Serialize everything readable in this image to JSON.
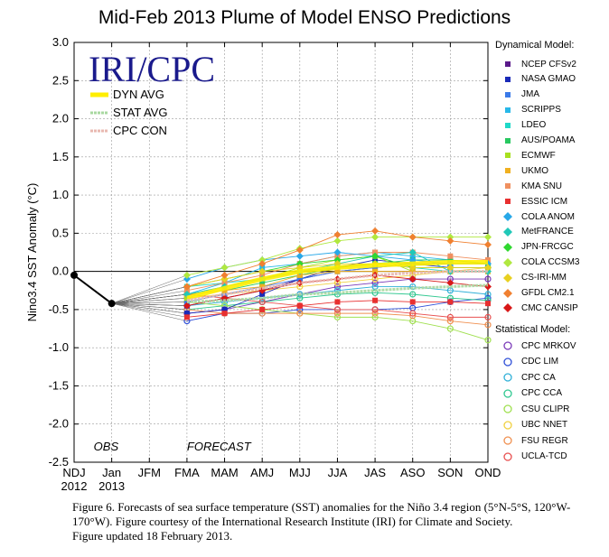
{
  "title": "Mid-Feb 2013 Plume of Model ENSO Predictions",
  "caption": {
    "line1": "Figure 6. Forecasts of sea surface temperature (SST) anomalies for the Niño 3.4 region (5°N-5°S, 120°W-",
    "line2": "170°W).  Figure courtesy of the International Research Institute (IRI) for Climate and Society.",
    "line3": "Figure updated 18 February 2013."
  },
  "chart_data": {
    "type": "line",
    "ylabel": "Nino3.4 SST Anomaly (°C)",
    "ylim": [
      -2.5,
      3.0
    ],
    "yticks": [
      "3.0",
      "2.5",
      "2.0",
      "1.5",
      "1.0",
      "0.5",
      "0.0",
      "-0.5",
      "-1.0",
      "-1.5",
      "-2.0",
      "-2.5"
    ],
    "categories": [
      "NDJ",
      "Jan",
      "JFM",
      "FMA",
      "MAM",
      "AMJ",
      "MJJ",
      "JJA",
      "JAS",
      "ASO",
      "SON",
      "OND"
    ],
    "years": [
      "2012",
      "2013"
    ],
    "annotations": {
      "obs": "OBS",
      "forecast": "FORECAST"
    },
    "brand": "IRI/CPC",
    "observed": [
      -0.05,
      -0.42
    ],
    "averages": [
      {
        "name": "DYN AVG",
        "color": "#ffee00",
        "values": [
          -0.35,
          -0.22,
          -0.1,
          0.0,
          0.05,
          0.08,
          0.1,
          0.12,
          0.12
        ]
      },
      {
        "name": "STAT AVG",
        "color": "#a8d8a0",
        "values": [
          -0.4,
          -0.38,
          -0.35,
          -0.3,
          -0.28,
          -0.25,
          -0.22,
          -0.2,
          -0.18
        ]
      },
      {
        "name": "CPC CON",
        "color": "#e8b8b0",
        "values": [
          -0.38,
          -0.3,
          -0.22,
          -0.15,
          -0.1,
          -0.05,
          -0.02,
          0.0,
          0.0
        ]
      }
    ],
    "legend_dynamical_title": "Dynamical Model:",
    "legend_statistical_title": "Statistical Model:",
    "dynamical": [
      {
        "name": "NCEP CFSv2",
        "color": "#5a1a8a",
        "marker": "square",
        "values": [
          -0.45,
          -0.35,
          -0.25,
          -0.1,
          0.0,
          0.05,
          0.1,
          0.1,
          0.1
        ]
      },
      {
        "name": "NASA GMAO",
        "color": "#1a2ab8",
        "marker": "square",
        "values": [
          -0.55,
          -0.5,
          -0.3,
          -0.1,
          0.05,
          0.15,
          0.1,
          0.05,
          0.05
        ]
      },
      {
        "name": "JMA",
        "color": "#3a7ae8",
        "marker": "square",
        "values": [
          -0.4,
          -0.3,
          -0.2,
          -0.1,
          0.0,
          0.05,
          0.1,
          0.1,
          0.1
        ]
      },
      {
        "name": "SCRIPPS",
        "color": "#28b8e8",
        "marker": "square",
        "values": [
          -0.3,
          -0.15,
          0.05,
          0.1,
          0.2,
          0.25,
          0.2,
          0.15,
          0.1
        ]
      },
      {
        "name": "LDEO",
        "color": "#20d8c8",
        "marker": "square",
        "values": [
          -0.2,
          -0.15,
          -0.1,
          0.0,
          0.05,
          0.1,
          0.05,
          0.0,
          0.0
        ]
      },
      {
        "name": "AUS/POAMA",
        "color": "#28c860",
        "marker": "square",
        "values": [
          -0.3,
          -0.25,
          -0.15,
          -0.05,
          0.05,
          0.1,
          0.15,
          0.15,
          0.1
        ]
      },
      {
        "name": "ECMWF",
        "color": "#a8e020",
        "marker": "square",
        "values": [
          -0.35,
          -0.2,
          -0.1,
          0.05,
          0.15,
          0.2,
          0.0,
          0.0,
          0.0
        ]
      },
      {
        "name": "UKMO",
        "color": "#f0b020",
        "marker": "square",
        "values": [
          -0.3,
          -0.25,
          -0.2,
          -0.05,
          0.0,
          0.0,
          0.0,
          0.0,
          0.0
        ]
      },
      {
        "name": "KMA SNU",
        "color": "#f09060",
        "marker": "square",
        "values": [
          -0.25,
          -0.15,
          -0.05,
          0.1,
          0.2,
          0.25,
          0.25,
          0.2,
          0.15
        ]
      },
      {
        "name": "ESSIC ICM",
        "color": "#e83030",
        "marker": "square",
        "values": [
          -0.6,
          -0.55,
          -0.5,
          -0.45,
          -0.4,
          -0.38,
          -0.4,
          -0.4,
          -0.42
        ]
      },
      {
        "name": "COLA ANOM",
        "color": "#28a8e8",
        "marker": "diamond",
        "values": [
          -0.1,
          0.05,
          0.15,
          0.2,
          0.25,
          0.2,
          0.15,
          0.1,
          0.1
        ]
      },
      {
        "name": "MetFRANCE",
        "color": "#20c8b8",
        "marker": "diamond",
        "values": [
          -0.3,
          -0.2,
          -0.1,
          0.0,
          0.1,
          0.2,
          0.25,
          0.0,
          0.0
        ]
      },
      {
        "name": "JPN-FRCGC",
        "color": "#30d830",
        "marker": "diamond",
        "values": [
          -0.2,
          -0.1,
          0.0,
          0.1,
          0.15,
          0.2,
          0.05,
          0.05,
          0.05
        ]
      },
      {
        "name": "COLA CCSM3",
        "color": "#b0e840",
        "marker": "diamond",
        "values": [
          -0.05,
          0.05,
          0.15,
          0.3,
          0.4,
          0.45,
          0.45,
          0.45,
          0.45
        ]
      },
      {
        "name": "CS-IRI-MM",
        "color": "#e8d020",
        "marker": "diamond",
        "values": [
          -0.2,
          -0.1,
          0.0,
          0.05,
          0.1,
          0.1,
          0.05,
          0.05,
          0.05
        ]
      },
      {
        "name": "GFDL CM2.1",
        "color": "#f08030",
        "marker": "diamond",
        "values": [
          -0.2,
          -0.05,
          0.1,
          0.28,
          0.48,
          0.53,
          0.45,
          0.4,
          0.35
        ]
      },
      {
        "name": "CMC CANSIP",
        "color": "#d81818",
        "marker": "diamond",
        "values": [
          -0.45,
          -0.35,
          -0.25,
          -0.15,
          -0.1,
          -0.05,
          -0.1,
          -0.15,
          -0.2
        ]
      }
    ],
    "statistical": [
      {
        "name": "CPC MRKOV",
        "color": "#7a3ab8",
        "marker": "circle",
        "values": [
          -0.55,
          -0.5,
          -0.4,
          -0.3,
          -0.2,
          -0.15,
          -0.1,
          -0.1,
          -0.1
        ]
      },
      {
        "name": "CDC LIM",
        "color": "#3050d8",
        "marker": "circle",
        "values": [
          -0.65,
          -0.55,
          -0.55,
          -0.5,
          -0.5,
          -0.5,
          -0.48,
          -0.4,
          -0.35
        ]
      },
      {
        "name": "CPC CA",
        "color": "#30b0d8",
        "marker": "circle",
        "values": [
          -0.45,
          -0.4,
          -0.35,
          -0.3,
          -0.25,
          -0.2,
          -0.2,
          -0.25,
          -0.3
        ]
      },
      {
        "name": "CPC CCA",
        "color": "#30c890",
        "marker": "circle",
        "values": [
          -0.5,
          -0.45,
          -0.4,
          -0.35,
          -0.3,
          -0.28,
          -0.3,
          -0.35,
          -0.38
        ]
      },
      {
        "name": "CSU CLIPR",
        "color": "#a0e050",
        "marker": "circle",
        "values": [
          -0.4,
          -0.45,
          -0.5,
          -0.55,
          -0.6,
          -0.6,
          -0.65,
          -0.75,
          -0.9
        ]
      },
      {
        "name": "UBC NNET",
        "color": "#f0d040",
        "marker": "circle",
        "values": [
          -0.35,
          -0.3,
          -0.25,
          -0.2,
          -0.15,
          -0.1,
          -0.05,
          0.0,
          0.05
        ]
      },
      {
        "name": "FSU REGR",
        "color": "#f09050",
        "marker": "circle",
        "values": [
          -0.5,
          -0.55,
          -0.55,
          -0.55,
          -0.55,
          -0.55,
          -0.58,
          -0.65,
          -0.7
        ]
      },
      {
        "name": "UCLA-TCD",
        "color": "#e85050",
        "marker": "circle",
        "values": [
          -0.3,
          -0.35,
          -0.4,
          -0.45,
          -0.5,
          -0.5,
          -0.55,
          -0.6,
          -0.6
        ]
      }
    ]
  }
}
